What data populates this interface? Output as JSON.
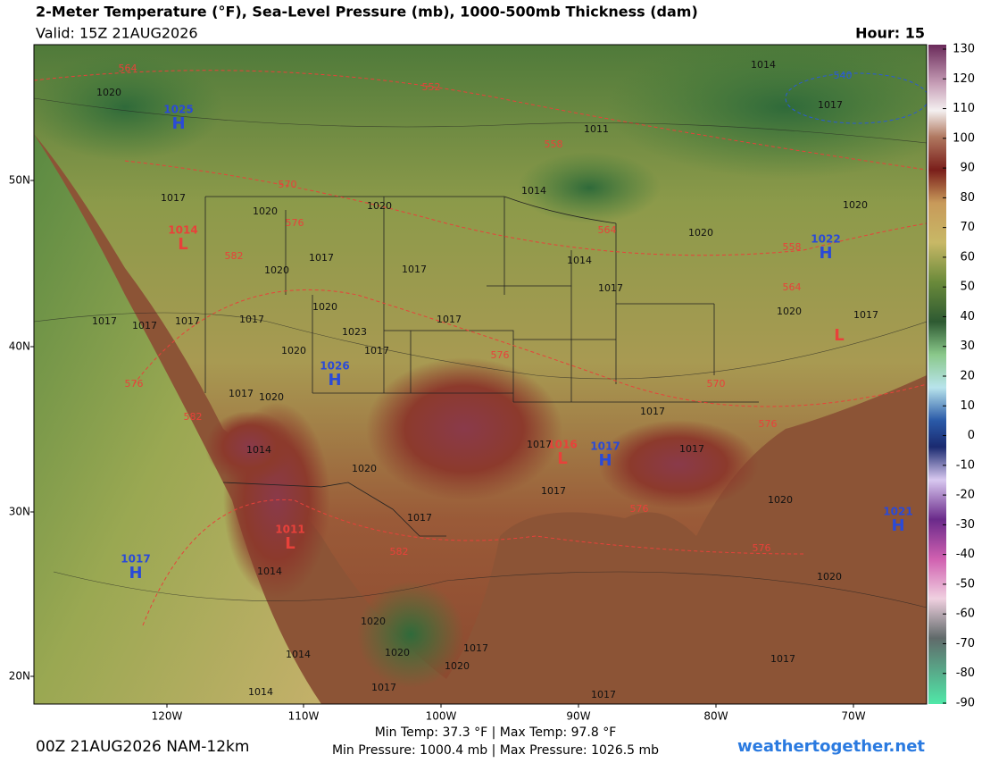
{
  "header": {
    "title": "2-Meter Temperature (°F), Sea-Level Pressure (mb), 1000-500mb Thickness (dam)",
    "valid": "Valid: 15Z 21AUG2026",
    "hour": "Hour: 15"
  },
  "colorbar": {
    "ticks": [
      130,
      120,
      110,
      100,
      90,
      80,
      70,
      60,
      50,
      40,
      30,
      20,
      10,
      0,
      -10,
      -20,
      -30,
      -40,
      -50,
      -60,
      -70,
      -80,
      -90
    ]
  },
  "lat_labels": [
    "50N",
    "40N",
    "30N",
    "20N"
  ],
  "lon_labels": [
    "120W",
    "110W",
    "100W",
    "90W",
    "80W",
    "70W"
  ],
  "pressure_centers": [
    {
      "kind": "H",
      "value": 1025
    },
    {
      "kind": "L",
      "value": 1014
    },
    {
      "kind": "H",
      "value": 1026
    },
    {
      "kind": "H",
      "value": 1017
    },
    {
      "kind": "L",
      "value": 1011
    },
    {
      "kind": "H",
      "value": 1017
    },
    {
      "kind": "H",
      "value": 1022
    },
    {
      "kind": "H",
      "value": 1021
    },
    {
      "kind": "L",
      "value": 1016
    },
    {
      "kind": "L"
    }
  ],
  "isobar_labels": [
    1020,
    1014,
    1011,
    1014,
    1017,
    1020,
    1017,
    1020,
    1020,
    1017,
    1017,
    1020,
    1014,
    1017,
    1020,
    1020,
    1023,
    1020,
    1017,
    1017,
    1020,
    1017,
    1017,
    1017,
    1017,
    1017,
    1017,
    1020,
    1014,
    1020,
    1017,
    1017,
    1017,
    1017,
    1017,
    1020,
    1020,
    1020,
    1020,
    1014,
    1017,
    1020,
    1017,
    1017,
    1014,
    1017,
    1014
  ],
  "thickness_labels": [
    564,
    552,
    558,
    570,
    576,
    582,
    564,
    558,
    564,
    576,
    570,
    576,
    582,
    582,
    576,
    576,
    576,
    540
  ],
  "footer": {
    "temps": "Min Temp:  37.3 °F | Max Temp:  97.8 °F",
    "pressures": "Min Pressure: 1000.4 mb | Max Pressure: 1026.5 mb",
    "run": "00Z 21AUG2026 NAM-12km",
    "site": "weathertogether.net"
  }
}
